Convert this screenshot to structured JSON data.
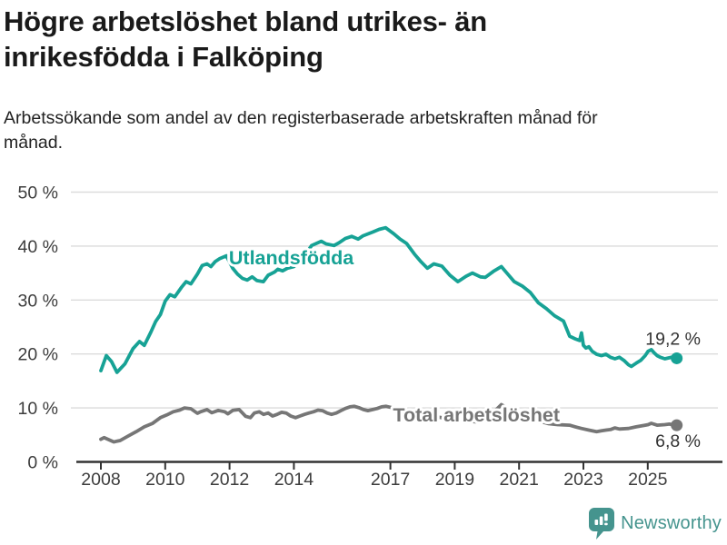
{
  "header": {
    "title": "Högre arbetslöshet bland utrikes- än inrikesfödda i Falköping",
    "subtitle": "Arbetssökande som andel av den registerbaserade arbetskraften månad för månad."
  },
  "footer": {
    "brand": "Newsworthy",
    "brand_color": "#45948e"
  },
  "chart_data": {
    "type": "line",
    "title": "Högre arbetslöshet bland utrikes- än inrikesfödda i Falköping",
    "subtitle": "Arbetssökande som andel av den registerbaserade arbetskraften månad för månad.",
    "grid": true,
    "legend_position": "inline-labels",
    "x_axis": {
      "ticks": [
        2008,
        2010,
        2012,
        2014,
        2017,
        2019,
        2021,
        2023,
        2025
      ],
      "range": [
        2007.7,
        2026.3
      ]
    },
    "y_axis": {
      "ticks": [
        0,
        10,
        20,
        30,
        40,
        50
      ],
      "suffix": " %",
      "range": [
        0,
        50
      ]
    },
    "axis_color": "#333333",
    "gridline_color": "#dcdcdc",
    "tick_label_color": "#3d3d3d",
    "annotation_color": "#333333",
    "series": [
      {
        "name": "Utlandsfödda",
        "color": "#17a295",
        "end_value": 19.2,
        "end_label": "19,2 %",
        "label_pos": {
          "t": 2011.98,
          "v": 36.6
        },
        "value_label_offset": -15,
        "points": [
          [
            2008.0,
            16.9
          ],
          [
            2008.17,
            19.7
          ],
          [
            2008.33,
            18.6
          ],
          [
            2008.5,
            16.6
          ],
          [
            2008.75,
            18.2
          ],
          [
            2009.0,
            21.0
          ],
          [
            2009.2,
            22.3
          ],
          [
            2009.35,
            21.6
          ],
          [
            2009.55,
            24.0
          ],
          [
            2009.7,
            26.0
          ],
          [
            2009.85,
            27.3
          ],
          [
            2010.0,
            29.8
          ],
          [
            2010.15,
            31.0
          ],
          [
            2010.3,
            30.6
          ],
          [
            2010.5,
            32.3
          ],
          [
            2010.65,
            33.4
          ],
          [
            2010.8,
            33.0
          ],
          [
            2011.0,
            34.8
          ],
          [
            2011.15,
            36.4
          ],
          [
            2011.3,
            36.7
          ],
          [
            2011.42,
            36.2
          ],
          [
            2011.55,
            37.1
          ],
          [
            2011.7,
            37.7
          ],
          [
            2011.9,
            38.2
          ],
          [
            2012.1,
            35.9
          ],
          [
            2012.25,
            34.8
          ],
          [
            2012.4,
            34.0
          ],
          [
            2012.55,
            33.7
          ],
          [
            2012.7,
            34.3
          ],
          [
            2012.85,
            33.6
          ],
          [
            2013.05,
            33.4
          ],
          [
            2013.2,
            34.6
          ],
          [
            2013.4,
            35.2
          ],
          [
            2013.5,
            35.7
          ],
          [
            2013.65,
            35.4
          ],
          [
            2013.8,
            35.9
          ],
          [
            2014.0,
            36.2
          ],
          [
            2014.2,
            37.3
          ],
          [
            2014.4,
            38.8
          ],
          [
            2014.55,
            40.1
          ],
          [
            2014.85,
            40.9
          ],
          [
            2015.0,
            40.4
          ],
          [
            2015.25,
            40.1
          ],
          [
            2015.4,
            40.6
          ],
          [
            2015.6,
            41.4
          ],
          [
            2015.8,
            41.8
          ],
          [
            2016.0,
            41.3
          ],
          [
            2016.15,
            41.9
          ],
          [
            2016.45,
            42.6
          ],
          [
            2016.65,
            43.1
          ],
          [
            2016.85,
            43.4
          ],
          [
            2017.1,
            42.3
          ],
          [
            2017.3,
            41.3
          ],
          [
            2017.5,
            40.5
          ],
          [
            2017.75,
            38.5
          ],
          [
            2017.95,
            37.1
          ],
          [
            2018.15,
            35.9
          ],
          [
            2018.35,
            36.7
          ],
          [
            2018.6,
            36.3
          ],
          [
            2018.85,
            34.6
          ],
          [
            2019.1,
            33.4
          ],
          [
            2019.35,
            34.4
          ],
          [
            2019.55,
            35.0
          ],
          [
            2019.8,
            34.3
          ],
          [
            2019.95,
            34.2
          ],
          [
            2020.2,
            35.3
          ],
          [
            2020.45,
            36.2
          ],
          [
            2020.65,
            34.8
          ],
          [
            2020.85,
            33.4
          ],
          [
            2021.1,
            32.6
          ],
          [
            2021.35,
            31.4
          ],
          [
            2021.6,
            29.5
          ],
          [
            2021.85,
            28.4
          ],
          [
            2022.1,
            27.1
          ],
          [
            2022.38,
            26.1
          ],
          [
            2022.57,
            23.3
          ],
          [
            2022.75,
            22.8
          ],
          [
            2022.88,
            22.5
          ],
          [
            2022.94,
            23.9
          ],
          [
            2023.0,
            21.6
          ],
          [
            2023.08,
            21.1
          ],
          [
            2023.17,
            21.35
          ],
          [
            2023.27,
            20.5
          ],
          [
            2023.41,
            19.95
          ],
          [
            2023.56,
            19.7
          ],
          [
            2023.7,
            19.95
          ],
          [
            2023.84,
            19.4
          ],
          [
            2023.98,
            19.1
          ],
          [
            2024.12,
            19.4
          ],
          [
            2024.26,
            18.8
          ],
          [
            2024.4,
            18.0
          ],
          [
            2024.49,
            17.7
          ],
          [
            2024.64,
            18.3
          ],
          [
            2024.78,
            18.8
          ],
          [
            2024.92,
            19.7
          ],
          [
            2025.01,
            20.5
          ],
          [
            2025.11,
            20.8
          ],
          [
            2025.2,
            20.2
          ],
          [
            2025.29,
            19.7
          ],
          [
            2025.39,
            19.4
          ],
          [
            2025.53,
            19.1
          ],
          [
            2025.67,
            19.3
          ],
          [
            2025.81,
            19.5
          ],
          [
            2025.9,
            19.2
          ]
        ]
      },
      {
        "name": "Total arbetslöshet",
        "color": "#767676",
        "end_value": 6.8,
        "end_label": "6,8 %",
        "label_pos": {
          "t": 2017.08,
          "v": 7.5
        },
        "value_label_offset": 24,
        "points": [
          [
            2008.0,
            4.2
          ],
          [
            2008.1,
            4.5
          ],
          [
            2008.4,
            3.7
          ],
          [
            2008.6,
            3.95
          ],
          [
            2008.85,
            4.8
          ],
          [
            2009.1,
            5.6
          ],
          [
            2009.35,
            6.5
          ],
          [
            2009.6,
            7.1
          ],
          [
            2009.85,
            8.2
          ],
          [
            2010.05,
            8.7
          ],
          [
            2010.25,
            9.3
          ],
          [
            2010.45,
            9.6
          ],
          [
            2010.6,
            10.0
          ],
          [
            2010.8,
            9.85
          ],
          [
            2011.0,
            9.0
          ],
          [
            2011.1,
            9.3
          ],
          [
            2011.3,
            9.7
          ],
          [
            2011.45,
            9.1
          ],
          [
            2011.65,
            9.55
          ],
          [
            2011.85,
            9.3
          ],
          [
            2011.95,
            8.9
          ],
          [
            2012.1,
            9.55
          ],
          [
            2012.3,
            9.7
          ],
          [
            2012.5,
            8.45
          ],
          [
            2012.65,
            8.2
          ],
          [
            2012.77,
            9.05
          ],
          [
            2012.92,
            9.3
          ],
          [
            2013.06,
            8.8
          ],
          [
            2013.2,
            9.05
          ],
          [
            2013.34,
            8.5
          ],
          [
            2013.48,
            8.8
          ],
          [
            2013.62,
            9.2
          ],
          [
            2013.76,
            9.05
          ],
          [
            2013.9,
            8.5
          ],
          [
            2014.05,
            8.2
          ],
          [
            2014.19,
            8.5
          ],
          [
            2014.33,
            8.8
          ],
          [
            2014.47,
            9.05
          ],
          [
            2014.61,
            9.3
          ],
          [
            2014.75,
            9.6
          ],
          [
            2014.89,
            9.5
          ],
          [
            2015.03,
            9.05
          ],
          [
            2015.17,
            8.8
          ],
          [
            2015.32,
            9.05
          ],
          [
            2015.46,
            9.5
          ],
          [
            2015.6,
            9.9
          ],
          [
            2015.74,
            10.2
          ],
          [
            2015.88,
            10.3
          ],
          [
            2016.02,
            10.05
          ],
          [
            2016.16,
            9.7
          ],
          [
            2016.3,
            9.5
          ],
          [
            2016.45,
            9.7
          ],
          [
            2016.59,
            9.9
          ],
          [
            2016.73,
            10.2
          ],
          [
            2016.87,
            10.3
          ],
          [
            2017.15,
            9.9
          ],
          [
            2017.5,
            9.6
          ],
          [
            2017.8,
            9.2
          ],
          [
            2018.1,
            8.8
          ],
          [
            2018.5,
            8.3
          ],
          [
            2018.9,
            7.9
          ],
          [
            2019.3,
            7.6
          ],
          [
            2019.7,
            7.4
          ],
          [
            2020.0,
            8.0
          ],
          [
            2020.45,
            10.6
          ],
          [
            2020.7,
            9.8
          ],
          [
            2021.0,
            9.0
          ],
          [
            2021.3,
            8.2
          ],
          [
            2021.6,
            7.6
          ],
          [
            2021.9,
            7.1
          ],
          [
            2022.2,
            6.9
          ],
          [
            2022.57,
            6.8
          ],
          [
            2022.75,
            6.5
          ],
          [
            2022.94,
            6.2
          ],
          [
            2023.17,
            5.9
          ],
          [
            2023.41,
            5.6
          ],
          [
            2023.56,
            5.75
          ],
          [
            2023.7,
            5.9
          ],
          [
            2023.84,
            6.0
          ],
          [
            2023.98,
            6.3
          ],
          [
            2024.12,
            6.1
          ],
          [
            2024.4,
            6.2
          ],
          [
            2024.64,
            6.5
          ],
          [
            2024.92,
            6.8
          ],
          [
            2025.01,
            6.9
          ],
          [
            2025.11,
            7.15
          ],
          [
            2025.29,
            6.8
          ],
          [
            2025.53,
            6.9
          ],
          [
            2025.67,
            7.0
          ],
          [
            2025.9,
            6.8
          ]
        ]
      }
    ]
  }
}
